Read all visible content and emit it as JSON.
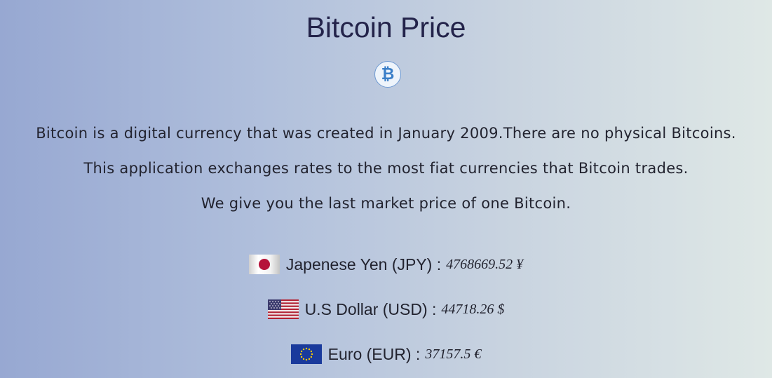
{
  "header": {
    "title": "Bitcoin Price",
    "logo_icon": "bitcoin-icon"
  },
  "description": [
    "Bitcoin is a digital currency that was created in January 2009.There are no physical Bitcoins.",
    "This application exchanges rates to the most fiat currencies that Bitcoin trades.",
    "We give you the last market price of one Bitcoin."
  ],
  "rates": [
    {
      "label": "Japenese Yen (JPY) :",
      "value": "4768669.52 ¥",
      "flag_icon": "japan-flag-icon"
    },
    {
      "label": "U.S Dollar (USD) :",
      "value": "44718.26 $",
      "flag_icon": "usa-flag-icon"
    },
    {
      "label": "Euro (EUR) :",
      "value": "37157.5 €",
      "flag_icon": "eu-flag-icon"
    }
  ],
  "colors": {
    "title": "#23234a",
    "text": "#22232f",
    "logo": "#3b7fc8"
  }
}
